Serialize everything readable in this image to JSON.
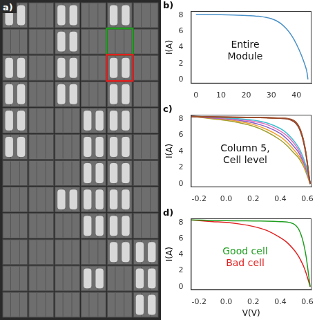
{
  "image": {
    "panel_label": "a)"
  },
  "chart_data": [
    {
      "type": "line",
      "panel_label": "b)",
      "annotation": [
        "Entire",
        "Module"
      ],
      "y_label": "I(A)",
      "x": [
        0,
        5,
        10,
        15,
        20,
        25,
        28,
        30,
        32,
        34,
        36,
        38,
        40,
        42,
        44,
        44.6
      ],
      "series": [
        {
          "color": "#4a90c8",
          "values": [
            8.1,
            8.08,
            8.05,
            8.0,
            7.95,
            7.85,
            7.7,
            7.55,
            7.3,
            6.9,
            6.3,
            5.5,
            4.4,
            3.0,
            1.2,
            0
          ]
        }
      ],
      "xlim": [
        -2,
        46
      ],
      "ylim": [
        -0.5,
        8.5
      ],
      "xticks": [
        0,
        10,
        20,
        30,
        40
      ],
      "yticks": [
        0,
        2,
        4,
        6,
        8
      ],
      "grid": false
    },
    {
      "type": "line",
      "panel_label": "c)",
      "annotation": [
        "Column 5,",
        "Cell level"
      ],
      "y_label": "I(A)",
      "x": [
        -0.26,
        -0.1,
        0,
        0.1,
        0.2,
        0.3,
        0.4,
        0.45,
        0.5,
        0.53,
        0.55,
        0.57,
        0.59,
        0.61,
        0.62
      ],
      "series": [
        {
          "color": "#a0522d",
          "values": [
            8.3,
            8.25,
            8.22,
            8.2,
            8.18,
            8.15,
            8.1,
            8.05,
            7.8,
            7.3,
            6.6,
            5.5,
            3.8,
            1.3,
            0
          ]
        },
        {
          "color": "#8b3a3a",
          "values": [
            8.28,
            8.24,
            8.21,
            8.19,
            8.17,
            8.14,
            8.08,
            8.02,
            7.75,
            7.2,
            6.5,
            5.4,
            3.7,
            1.2,
            0
          ]
        },
        {
          "color": "#b5651d",
          "values": [
            8.26,
            8.22,
            8.2,
            8.18,
            8.16,
            8.12,
            8.06,
            8.0,
            7.7,
            7.15,
            6.4,
            5.3,
            3.6,
            1.1,
            0
          ]
        },
        {
          "color": "#7f3f3f",
          "values": [
            8.25,
            8.21,
            8.19,
            8.17,
            8.15,
            8.11,
            8.05,
            7.98,
            7.65,
            7.1,
            6.35,
            5.2,
            3.5,
            1.0,
            0
          ]
        },
        {
          "color": "#3fc0d0",
          "values": [
            8.3,
            8.2,
            8.1,
            8.0,
            7.85,
            7.5,
            6.8,
            6.2,
            5.3,
            4.6,
            4.0,
            3.2,
            2.2,
            0.9,
            0.2
          ]
        },
        {
          "color": "#e070c0",
          "values": [
            8.3,
            8.15,
            8.05,
            7.9,
            7.7,
            7.3,
            6.5,
            5.9,
            5.0,
            4.3,
            3.7,
            2.9,
            2.0,
            0.8,
            0.1
          ]
        },
        {
          "color": "#8a5cc8",
          "values": [
            8.3,
            8.1,
            8.0,
            7.8,
            7.5,
            7.0,
            6.2,
            5.5,
            4.6,
            4.0,
            3.4,
            2.7,
            1.8,
            0.7,
            0.1
          ]
        },
        {
          "color": "#f0a030",
          "values": [
            8.3,
            8.05,
            7.9,
            7.65,
            7.3,
            6.7,
            5.8,
            5.1,
            4.2,
            3.6,
            3.1,
            2.4,
            1.6,
            0.6,
            0
          ]
        },
        {
          "color": "#a0a030",
          "values": [
            8.3,
            8.0,
            7.8,
            7.5,
            7.1,
            6.4,
            5.4,
            4.7,
            3.8,
            3.3,
            2.8,
            2.2,
            1.4,
            0.5,
            0
          ]
        }
      ],
      "xlim": [
        -0.26,
        0.63
      ],
      "ylim": [
        -0.4,
        8.5
      ],
      "xticks": [
        -0.2,
        {
          "value": 0,
          "label": "0.0"
        },
        0.2,
        0.4,
        0.6
      ],
      "yticks": [
        0,
        2,
        4,
        6,
        8
      ],
      "grid": false
    },
    {
      "type": "line",
      "panel_label": "d)",
      "y_label": "I(A)",
      "x_label": "V(V)",
      "x": [
        -0.26,
        -0.1,
        0,
        0.1,
        0.2,
        0.3,
        0.4,
        0.45,
        0.5,
        0.53,
        0.55,
        0.57,
        0.59,
        0.61,
        0.62
      ],
      "series": [
        {
          "name": "Good cell",
          "color": "#1f9e1f",
          "values": [
            8.3,
            8.25,
            8.22,
            8.2,
            8.18,
            8.15,
            8.1,
            8.05,
            7.8,
            7.3,
            6.6,
            5.5,
            3.8,
            1.3,
            0
          ]
        },
        {
          "name": "Bad cell",
          "color": "#e02020",
          "values": [
            8.3,
            8.1,
            8.0,
            7.8,
            7.5,
            7.0,
            6.1,
            5.5,
            4.6,
            3.9,
            3.3,
            2.6,
            1.7,
            0.6,
            0
          ]
        }
      ],
      "xlim": [
        -0.26,
        0.63
      ],
      "ylim": [
        -0.4,
        8.5
      ],
      "xticks": [
        -0.2,
        {
          "value": 0,
          "label": "0.0"
        },
        0.2,
        0.4,
        0.6
      ],
      "yticks": [
        0,
        2,
        4,
        6,
        8
      ],
      "grid": false
    }
  ]
}
